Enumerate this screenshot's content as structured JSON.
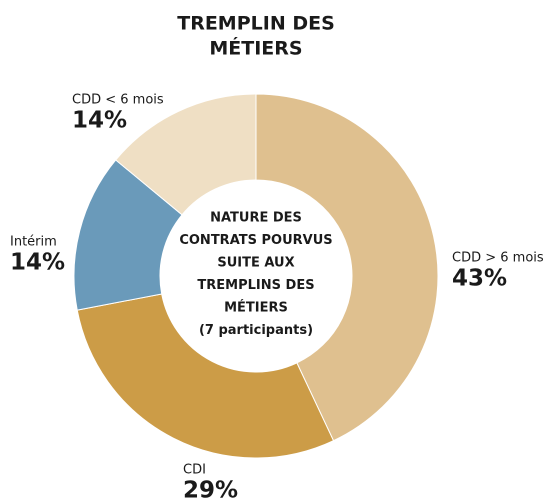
{
  "chart_data": {
    "type": "donut",
    "title": [
      "TREMPLIN DES",
      "MÉTIERS"
    ],
    "center_text": [
      "NATURE DES",
      "CONTRATS  POURVUS",
      "SUITE AUX",
      "TREMPLINS DES",
      "MÉTIERS",
      "(7 participants)"
    ],
    "categories": [
      "CDD > 6 mois",
      "CDI",
      "Intérim",
      "CDD < 6 mois"
    ],
    "values": [
      43,
      29,
      14,
      14
    ],
    "value_labels": [
      "43%",
      "29%",
      "14%",
      "14%"
    ],
    "colors": [
      "#dfc08f",
      "#cc9c47",
      "#6a9aba",
      "#efdfc4"
    ]
  }
}
